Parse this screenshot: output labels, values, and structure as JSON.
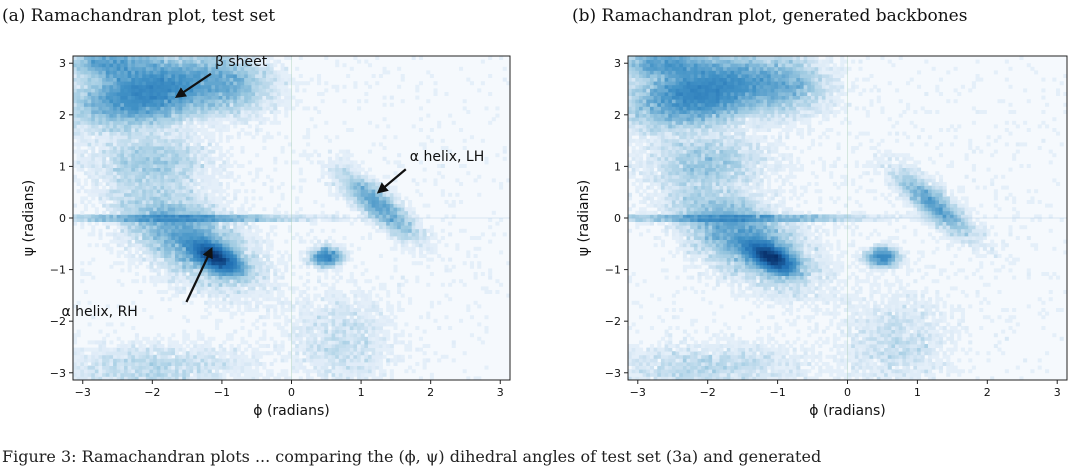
{
  "chart_data": [
    {
      "type": "heatmap",
      "title": "(a) Ramachandran plot, test set",
      "xlabel": "ϕ (radians)",
      "ylabel": "ψ (radians)",
      "xlim": [
        -3.14,
        3.14
      ],
      "ylim": [
        -3.14,
        3.14
      ],
      "xticks": [
        "−3",
        "−2",
        "−1",
        "0",
        "1",
        "2",
        "3"
      ],
      "yticks": [
        "−3",
        "−2",
        "−1",
        "0",
        "1",
        "2",
        "3"
      ],
      "colormap": "Blues",
      "clusters": [
        {
          "label": "β sheet",
          "phi": -2.0,
          "psi": 2.5
        },
        {
          "label": "α helix, RH",
          "phi": -1.1,
          "psi": -0.75
        },
        {
          "label": "α helix, LH",
          "phi": 1.2,
          "psi": 0.4
        }
      ],
      "annotations": [
        {
          "text": "β sheet",
          "text_at": [
            -1.1,
            2.95
          ],
          "arrow_to": [
            -1.65,
            2.35
          ]
        },
        {
          "text": "α helix, LH",
          "text_at": [
            1.7,
            1.1
          ],
          "arrow_to": [
            1.25,
            0.5
          ]
        },
        {
          "text": "α helix, RH",
          "text_at": [
            -2.3,
            -1.9
          ],
          "arrow_to": [
            -1.15,
            -0.6
          ]
        }
      ]
    },
    {
      "type": "heatmap",
      "title": "(b) Ramachandran plot, generated backbones",
      "xlabel": "ϕ (radians)",
      "ylabel": "ψ (radians)",
      "xlim": [
        -3.14,
        3.14
      ],
      "ylim": [
        -3.14,
        3.14
      ],
      "xticks": [
        "−3",
        "−2",
        "−1",
        "0",
        "1",
        "2",
        "3"
      ],
      "yticks": [
        "−3",
        "−2",
        "−1",
        "0",
        "1",
        "2",
        "3"
      ],
      "colormap": "Blues",
      "clusters": [
        {
          "phi": -2.0,
          "psi": 2.4
        },
        {
          "phi": -1.05,
          "psi": -0.75
        },
        {
          "phi": 1.25,
          "psi": 0.3
        }
      ],
      "annotations": []
    }
  ],
  "caption": "Figure 3: Ramachandran plots ... comparing the (ϕ, ψ) dihedral angles of test set (3a) and generated"
}
